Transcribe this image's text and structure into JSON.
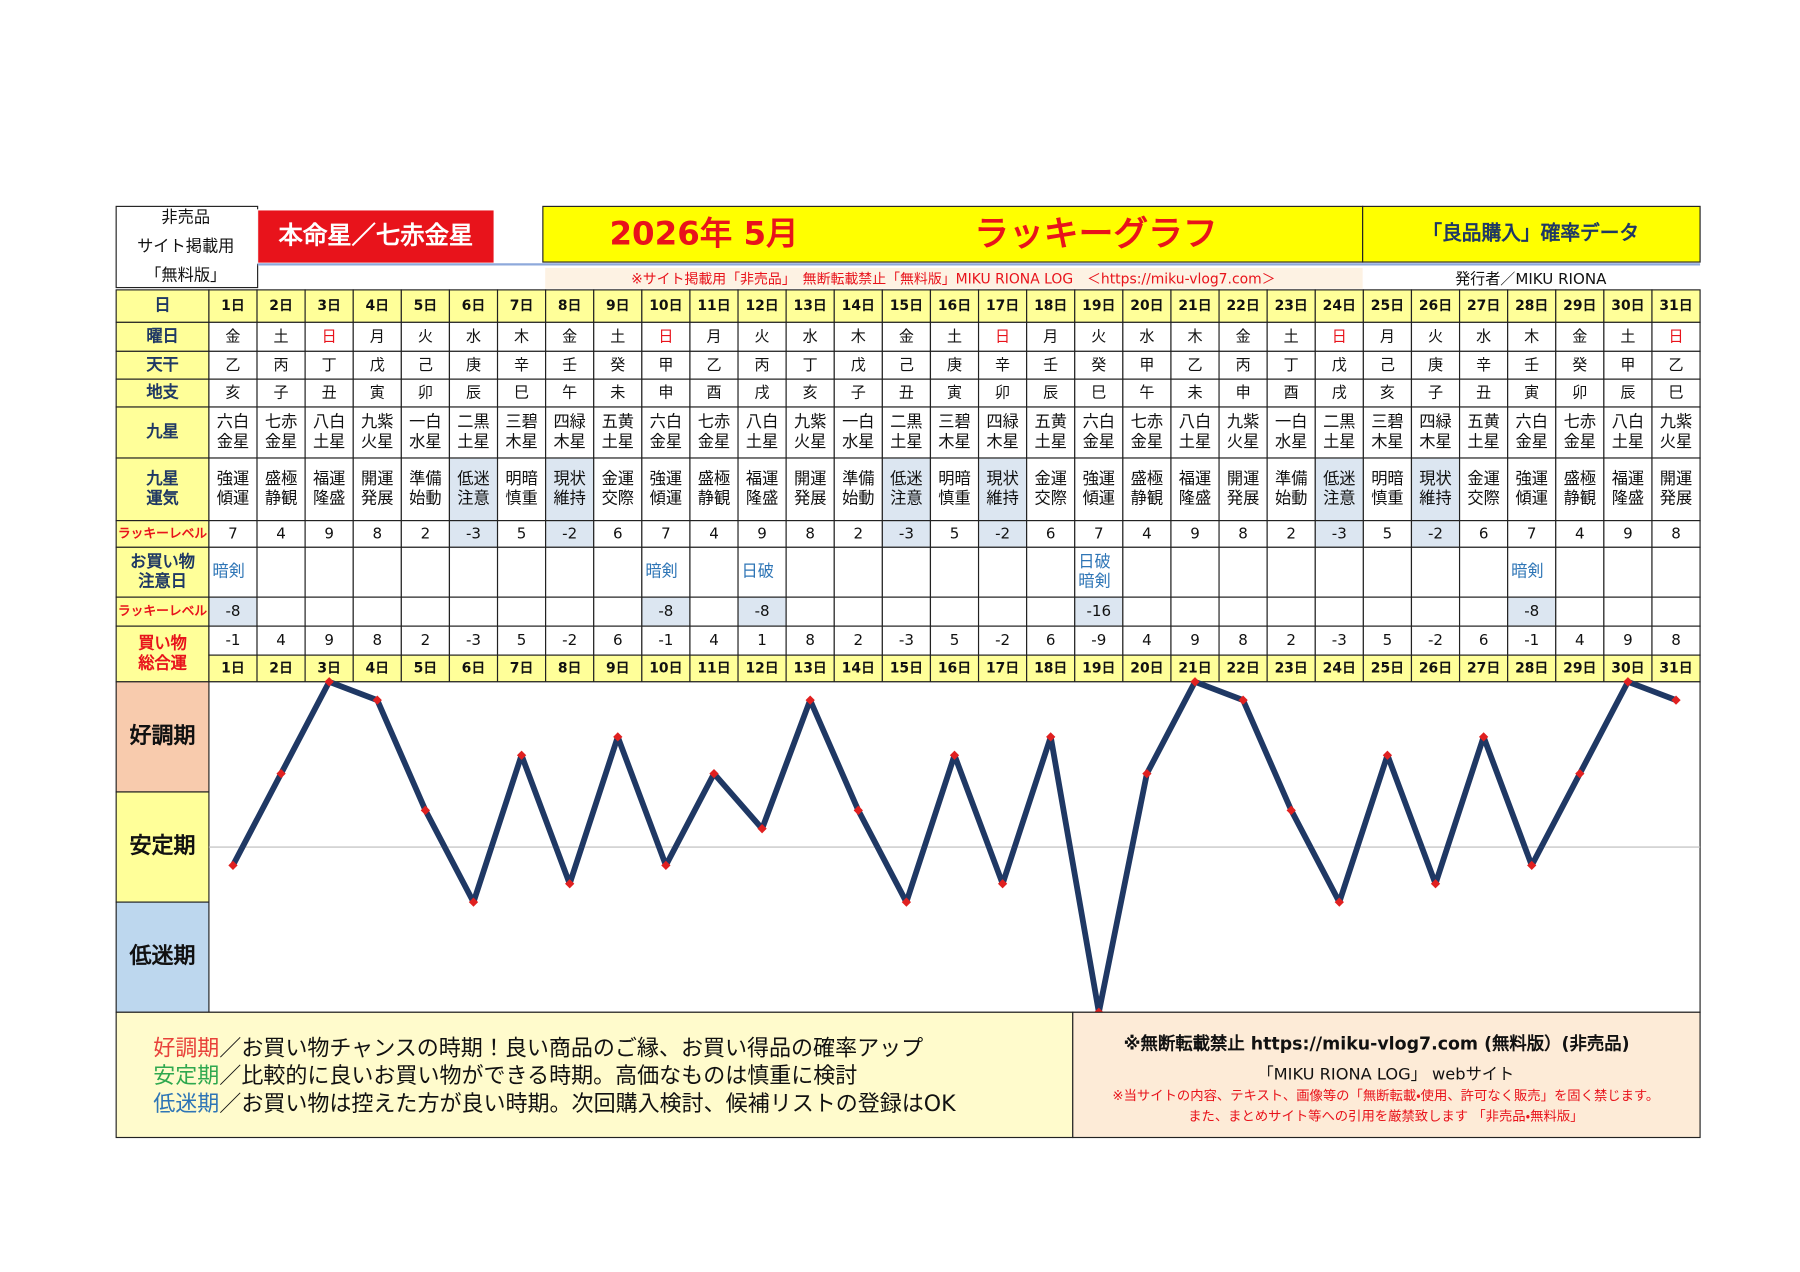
{
  "header": {
    "left": [
      "非売品",
      "サイト掲載用",
      "「無料版」"
    ],
    "honmei": "本命星／七赤金星",
    "year": "2026年 5月",
    "title": "ラッキーグラフ",
    "subtitle": "「良品購入」確率データ",
    "notice": "※サイト掲載用「非売品」　無断転載禁止「無料版」MIKU RIONA LOG　＜https://miku-vlog7.com＞",
    "publisher": "発行者／MIKU RIONA"
  },
  "table": {
    "row_labels": [
      [
        "日"
      ],
      [
        "曜日"
      ],
      [
        "天干"
      ],
      [
        "地支"
      ],
      [
        "九星"
      ],
      [
        "九星",
        "運気"
      ],
      [
        "ラッキーレベル"
      ],
      [
        "お買い物",
        "注意日"
      ],
      [
        "ラッキーレベル"
      ],
      [
        "買い物",
        "総合運"
      ]
    ],
    "days": [
      "1日",
      "2日",
      "3日",
      "4日",
      "5日",
      "6日",
      "7日",
      "8日",
      "9日",
      "10日",
      "11日",
      "12日",
      "13日",
      "14日",
      "15日",
      "16日",
      "17日",
      "18日",
      "19日",
      "20日",
      "21日",
      "22日",
      "23日",
      "24日",
      "25日",
      "26日",
      "27日",
      "28日",
      "29日",
      "30日",
      "31日"
    ],
    "weekdays": [
      "金",
      "土",
      "日",
      "月",
      "火",
      "水",
      "木",
      "金",
      "土",
      "日",
      "月",
      "火",
      "水",
      "木",
      "金",
      "土",
      "日",
      "月",
      "火",
      "水",
      "木",
      "金",
      "土",
      "日",
      "月",
      "火",
      "水",
      "木",
      "金",
      "土",
      "日"
    ],
    "kan": [
      "乙",
      "丙",
      "丁",
      "戊",
      "己",
      "庚",
      "辛",
      "壬",
      "癸",
      "甲",
      "乙",
      "丙",
      "丁",
      "戊",
      "己",
      "庚",
      "辛",
      "壬",
      "癸",
      "甲",
      "乙",
      "丙",
      "丁",
      "戊",
      "己",
      "庚",
      "辛",
      "壬",
      "癸",
      "甲",
      "乙"
    ],
    "shi": [
      "亥",
      "子",
      "丑",
      "寅",
      "卯",
      "辰",
      "巳",
      "午",
      "未",
      "申",
      "酉",
      "戌",
      "亥",
      "子",
      "丑",
      "寅",
      "卯",
      "辰",
      "巳",
      "午",
      "未",
      "申",
      "酉",
      "戌",
      "亥",
      "子",
      "丑",
      "寅",
      "卯",
      "辰",
      "巳"
    ],
    "stars": [
      [
        "六白",
        "金星"
      ],
      [
        "七赤",
        "金星"
      ],
      [
        "八白",
        "土星"
      ],
      [
        "九紫",
        "火星"
      ],
      [
        "一白",
        "水星"
      ],
      [
        "二黒",
        "土星"
      ],
      [
        "三碧",
        "木星"
      ],
      [
        "四緑",
        "木星"
      ],
      [
        "五黄",
        "土星"
      ],
      [
        "六白",
        "金星"
      ],
      [
        "七赤",
        "金星"
      ],
      [
        "八白",
        "土星"
      ],
      [
        "九紫",
        "火星"
      ],
      [
        "一白",
        "水星"
      ],
      [
        "二黒",
        "土星"
      ],
      [
        "三碧",
        "木星"
      ],
      [
        "四緑",
        "木星"
      ],
      [
        "五黄",
        "土星"
      ],
      [
        "六白",
        "金星"
      ],
      [
        "七赤",
        "金星"
      ],
      [
        "八白",
        "土星"
      ],
      [
        "九紫",
        "火星"
      ],
      [
        "一白",
        "水星"
      ],
      [
        "二黒",
        "土星"
      ],
      [
        "三碧",
        "木星"
      ],
      [
        "四緑",
        "木星"
      ],
      [
        "五黄",
        "土星"
      ],
      [
        "六白",
        "金星"
      ],
      [
        "七赤",
        "金星"
      ],
      [
        "八白",
        "土星"
      ],
      [
        "九紫",
        "火星"
      ]
    ],
    "fortunes": [
      [
        "強運",
        "傾運"
      ],
      [
        "盛極",
        "静観"
      ],
      [
        "福運",
        "隆盛"
      ],
      [
        "開運",
        "発展"
      ],
      [
        "準備",
        "始動"
      ],
      [
        "低迷",
        "注意"
      ],
      [
        "明暗",
        "慎重"
      ],
      [
        "現状",
        "維持"
      ],
      [
        "金運",
        "交際"
      ],
      [
        "強運",
        "傾運"
      ],
      [
        "盛極",
        "静観"
      ],
      [
        "福運",
        "隆盛"
      ],
      [
        "開運",
        "発展"
      ],
      [
        "準備",
        "始動"
      ],
      [
        "低迷",
        "注意"
      ],
      [
        "明暗",
        "慎重"
      ],
      [
        "現状",
        "維持"
      ],
      [
        "金運",
        "交際"
      ],
      [
        "強運",
        "傾運"
      ],
      [
        "盛極",
        "静観"
      ],
      [
        "福運",
        "隆盛"
      ],
      [
        "開運",
        "発展"
      ],
      [
        "準備",
        "始動"
      ],
      [
        "低迷",
        "注意"
      ],
      [
        "明暗",
        "慎重"
      ],
      [
        "現状",
        "維持"
      ],
      [
        "金運",
        "交際"
      ],
      [
        "強運",
        "傾運"
      ],
      [
        "盛極",
        "静観"
      ],
      [
        "福運",
        "隆盛"
      ],
      [
        "開運",
        "発展"
      ]
    ],
    "lucky": [
      7,
      4,
      9,
      8,
      2,
      -3,
      5,
      -2,
      6,
      7,
      4,
      9,
      8,
      2,
      -3,
      5,
      -2,
      6,
      7,
      4,
      9,
      8,
      2,
      -3,
      5,
      -2,
      6,
      7,
      4,
      9,
      8
    ],
    "caution": [
      [
        "暗剣"
      ],
      null,
      null,
      null,
      null,
      null,
      null,
      null,
      null,
      [
        "暗剣"
      ],
      null,
      [
        "日破"
      ],
      null,
      null,
      null,
      null,
      null,
      null,
      [
        "日破",
        "暗剣"
      ],
      null,
      null,
      null,
      null,
      null,
      null,
      null,
      null,
      [
        "暗剣"
      ],
      null,
      null,
      null
    ],
    "lucky2": [
      -8,
      null,
      null,
      null,
      null,
      null,
      null,
      null,
      null,
      -8,
      null,
      -8,
      null,
      null,
      null,
      null,
      null,
      null,
      -16,
      null,
      null,
      null,
      null,
      null,
      null,
      null,
      null,
      -8,
      null,
      null,
      null
    ],
    "total": [
      -1,
      4,
      9,
      8,
      2,
      -3,
      5,
      -2,
      6,
      -1,
      4,
      1,
      8,
      2,
      -3,
      5,
      -2,
      6,
      -9,
      4,
      9,
      8,
      2,
      -3,
      5,
      -2,
      6,
      -1,
      4,
      9,
      8
    ],
    "red_weekday": "日"
  },
  "chart": {
    "type": "line",
    "ylim": [
      -9,
      9
    ],
    "yticks": [
      0
    ],
    "color": "#1f3864",
    "marker_color": "#e02020",
    "zones": [
      "好調期",
      "安定期",
      "低迷期"
    ],
    "zone_colors": [
      "#f8cbad",
      "#ffff99",
      "#bdd7ee"
    ]
  },
  "footer": {
    "legend": [
      {
        "term": "好調期",
        "text": "／お買い物チャンスの時期！良い商品のご縁、お買い得品の確率アップ",
        "color": "#e8413a"
      },
      {
        "term": "安定期",
        "text": "／比較的に良いお買い物ができる時期。高価なものは慎重に検討",
        "color": "#2fa84f"
      },
      {
        "term": "低迷期",
        "text": "／お買い物は控えた方が良い時期。次回購入検討、候補リストの登録はOK",
        "color": "#2e75b6"
      }
    ],
    "right": [
      "※無断転載禁止  https://miku-vlog7.com (無料版）(非売品)",
      "「MIKU RIONA LOG」 webサイト"
    ],
    "warning": [
      "※当サイトの内容、テキスト、画像等の「無断転載・使用、許可なく販売」を固く禁じます。",
      "また、まとめサイト等への引用を厳禁致します 「非売品・無料版」"
    ]
  }
}
